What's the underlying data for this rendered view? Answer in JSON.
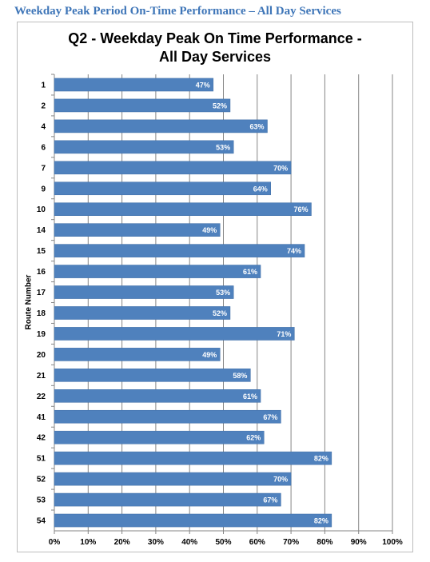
{
  "header": {
    "title": "Weekday Peak Period On-Time Performance – All Day Services"
  },
  "chart_data": {
    "type": "bar",
    "orientation": "horizontal",
    "title_line1": "Q2 - Weekday Peak On Time Performance -",
    "title_line2": "All Day Services",
    "ylabel": "Route Number",
    "xlabel": "",
    "xlim": [
      0,
      100
    ],
    "x_ticks": [
      "0%",
      "10%",
      "20%",
      "30%",
      "40%",
      "50%",
      "60%",
      "70%",
      "80%",
      "90%",
      "100%"
    ],
    "grid": "vertical",
    "bar_color": "#4f81bd",
    "categories": [
      "1",
      "2",
      "4",
      "6",
      "7",
      "9",
      "10",
      "14",
      "15",
      "16",
      "17",
      "18",
      "19",
      "20",
      "21",
      "22",
      "41",
      "42",
      "51",
      "52",
      "53",
      "54"
    ],
    "values": [
      47,
      52,
      63,
      53,
      70,
      64,
      76,
      49,
      74,
      61,
      53,
      52,
      71,
      49,
      58,
      61,
      67,
      62,
      82,
      70,
      67,
      82
    ],
    "value_labels": [
      "47%",
      "52%",
      "63%",
      "53%",
      "70%",
      "64%",
      "76%",
      "49%",
      "74%",
      "61%",
      "53%",
      "52%",
      "71%",
      "49%",
      "58%",
      "61%",
      "67%",
      "62%",
      "82%",
      "70%",
      "67%",
      "82%"
    ]
  }
}
